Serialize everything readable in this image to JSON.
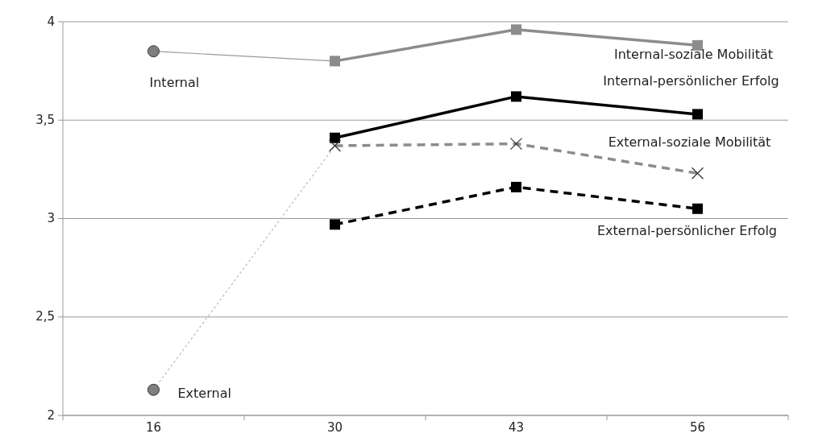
{
  "chart_data": {
    "type": "line",
    "categories": [
      "16",
      "30",
      "43",
      "56"
    ],
    "ylim": [
      2,
      4
    ],
    "yticks": [
      2,
      {
        "value": 2.5,
        "label": "2,5"
      },
      3,
      {
        "value": 3.5,
        "label": "3,5"
      },
      4
    ],
    "grid": "y",
    "legend": false,
    "series": [
      {
        "type": "line",
        "color": "#999999",
        "values": [
          3.85,
          3.8,
          null,
          null
        ],
        "line_style": "solid"
      },
      {
        "type": "line",
        "color": "#bbbbbb",
        "values": [
          2.13,
          3.37,
          null,
          null
        ],
        "line_style": "dotted"
      },
      {
        "type": "scatter",
        "name": "Internal",
        "color": "#7f7f7f",
        "values": [
          3.85,
          null,
          null,
          null
        ],
        "marker": "circle"
      },
      {
        "type": "scatter",
        "name": "External",
        "color": "#7f7f7f",
        "values": [
          2.13,
          null,
          null,
          null
        ],
        "marker": "circle"
      },
      {
        "name": "Internal-soziale Mobilität",
        "color": "#8c8c8c",
        "values": [
          null,
          3.8,
          3.96,
          3.88
        ],
        "marker": "square",
        "line_style": "solid"
      },
      {
        "name": "Internal-persönlicher Erfolg",
        "color": "#000000",
        "values": [
          null,
          3.41,
          3.62,
          3.53
        ],
        "marker": "square",
        "line_style": "solid"
      },
      {
        "name": "External-soziale Mobilität",
        "color": "#8c8c8c",
        "values": [
          null,
          3.37,
          3.38,
          3.23
        ],
        "marker": "cross",
        "line_style": "dashed"
      },
      {
        "name": "External-persönlicher Erfolg",
        "color": "#000000",
        "values": [
          null,
          2.97,
          3.16,
          3.05
        ],
        "marker": "square",
        "line_style": "dashed"
      }
    ]
  }
}
